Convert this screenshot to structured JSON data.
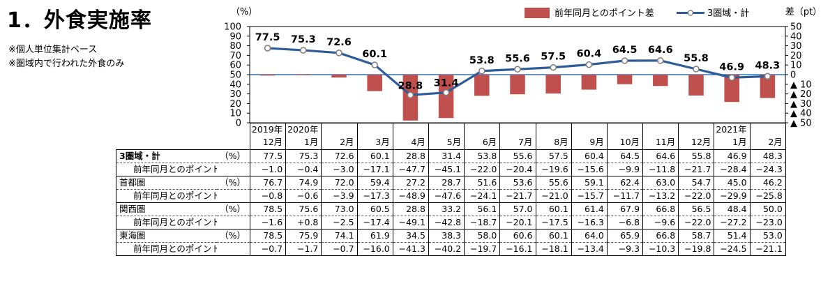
{
  "title": "1．外食実施率",
  "notes": [
    "※個人単位集計ベース",
    "※圏域内で行われた外食のみ"
  ],
  "chart_data": {
    "type": "bar+line",
    "categories": [
      "12月",
      "1月",
      "2月",
      "3月",
      "4月",
      "5月",
      "6月",
      "7月",
      "8月",
      "9月",
      "10月",
      "11月",
      "12月",
      "1月",
      "2月"
    ],
    "year_labels": [
      {
        "index": 0,
        "label": "2019年"
      },
      {
        "index": 1,
        "label": "2020年"
      },
      {
        "index": 13,
        "label": "2021年"
      }
    ],
    "left_axis": {
      "unit": "（%）",
      "min": 0,
      "max": 100,
      "ticks": [
        0,
        10,
        20,
        30,
        40,
        50,
        60,
        70,
        80,
        90,
        100
      ]
    },
    "right_axis": {
      "unit": "差（pt）",
      "min": -50,
      "max": 50,
      "ticks": [
        "50",
        "40",
        "30",
        "20",
        "10",
        "0",
        "▲ 10",
        "▲ 20",
        "▲ 30",
        "▲ 40",
        "▲ 50"
      ]
    },
    "series": [
      {
        "name": "前年同月とのポイント差",
        "kind": "bar",
        "axis": "right",
        "color": "#c0504d",
        "values": [
          -1.0,
          -0.4,
          -3.0,
          -17.1,
          -47.7,
          -45.1,
          -22.0,
          -20.4,
          -19.6,
          -15.6,
          -9.9,
          -11.8,
          -21.7,
          -28.4,
          -24.3
        ]
      },
      {
        "name": "3圏域・計",
        "kind": "line",
        "axis": "left",
        "color": "#2e5c99",
        "values": [
          77.5,
          75.3,
          72.6,
          60.1,
          28.8,
          31.4,
          53.8,
          55.6,
          57.5,
          60.4,
          64.5,
          64.6,
          55.8,
          46.9,
          48.3
        ]
      }
    ],
    "data_labels": [
      "77.5",
      "75.3",
      "72.6",
      "60.1",
      "28.8",
      "31.4",
      "53.8",
      "55.6",
      "57.5",
      "60.4",
      "64.5",
      "64.6",
      "55.8",
      "46.9",
      "48.3"
    ]
  },
  "table": {
    "rows": [
      {
        "label": "3圏域・計",
        "unit": "（%）",
        "kind": "main",
        "values": [
          "77.5",
          "75.3",
          "72.6",
          "60.1",
          "28.8",
          "31.4",
          "53.8",
          "55.6",
          "57.5",
          "60.4",
          "64.5",
          "64.6",
          "55.8",
          "46.9",
          "48.3"
        ]
      },
      {
        "label": "前年同月とのポイント差",
        "unit": "",
        "kind": "diff",
        "values": [
          "−1.0",
          "−0.4",
          "−3.0",
          "−17.1",
          "−47.7",
          "−45.1",
          "−22.0",
          "−20.4",
          "−19.6",
          "−15.6",
          "−9.9",
          "−11.8",
          "−21.7",
          "−28.4",
          "−24.3"
        ]
      },
      {
        "label": "首都圏",
        "unit": "（%）",
        "kind": "region",
        "values": [
          "76.7",
          "74.9",
          "72.0",
          "59.4",
          "27.2",
          "28.7",
          "51.6",
          "53.6",
          "55.6",
          "59.1",
          "62.4",
          "63.0",
          "54.7",
          "45.0",
          "46.2"
        ]
      },
      {
        "label": "前年同月とのポイント差",
        "unit": "",
        "kind": "diff",
        "values": [
          "−0.8",
          "−0.6",
          "−3.9",
          "−17.3",
          "−48.9",
          "−47.6",
          "−24.1",
          "−21.7",
          "−21.0",
          "−15.7",
          "−11.7",
          "−13.2",
          "−22.0",
          "−29.9",
          "−25.8"
        ]
      },
      {
        "label": "関西圏",
        "unit": "（%）",
        "kind": "region",
        "values": [
          "78.5",
          "75.6",
          "73.0",
          "60.5",
          "28.8",
          "33.2",
          "56.1",
          "57.0",
          "60.1",
          "61.4",
          "67.9",
          "66.8",
          "56.5",
          "48.4",
          "50.0"
        ]
      },
      {
        "label": "前年同月とのポイント差",
        "unit": "",
        "kind": "diff",
        "values": [
          "−1.6",
          "+0.8",
          "−2.5",
          "−17.4",
          "−49.1",
          "−42.8",
          "−18.7",
          "−20.1",
          "−17.5",
          "−16.3",
          "−6.8",
          "−9.6",
          "−22.0",
          "−27.2",
          "−23.0"
        ]
      },
      {
        "label": "東海圏",
        "unit": "（%）",
        "kind": "region",
        "values": [
          "78.5",
          "75.9",
          "74.1",
          "61.9",
          "34.5",
          "38.3",
          "58.0",
          "60.6",
          "60.1",
          "64.0",
          "65.9",
          "66.8",
          "58.7",
          "51.4",
          "53.0"
        ]
      },
      {
        "label": "前年同月とのポイント差",
        "unit": "",
        "kind": "diff",
        "values": [
          "−0.7",
          "−1.7",
          "−0.7",
          "−16.0",
          "−41.3",
          "−40.2",
          "−19.7",
          "−16.1",
          "−18.1",
          "−13.4",
          "−9.3",
          "−10.3",
          "−19.8",
          "−24.5",
          "−21.1"
        ]
      }
    ]
  }
}
